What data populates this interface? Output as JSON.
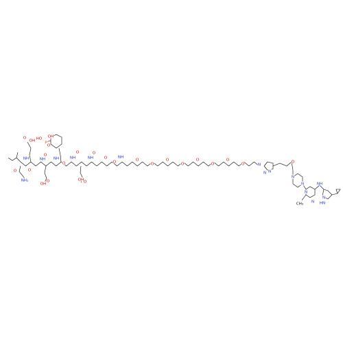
{
  "atom_labels": [
    "NH₂",
    "O",
    "NH",
    "O",
    "O",
    "OH",
    "NH",
    "O",
    "OH",
    "O",
    "NH",
    "O",
    "HO",
    "P",
    "OH",
    "O",
    "NH",
    "O",
    "OH",
    "O",
    "NH",
    "O",
    "O",
    "O",
    "NH",
    "O",
    "O",
    "O",
    "O",
    "O",
    "O",
    "O",
    "O",
    "N",
    "N",
    "N",
    "O",
    "N",
    "N",
    "N",
    "N",
    "NH",
    "CH₃",
    "HN",
    "N"
  ]
}
